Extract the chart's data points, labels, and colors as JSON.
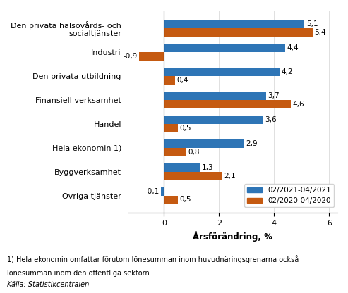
{
  "categories": [
    "Den privata hälsovårds- och\nsocialtjänster",
    "Industri",
    "Den privata utbildning",
    "Finansiell verksamhet",
    "Handel",
    "Hela ekonomin 1)",
    "Byggverksamhet",
    "Övriga tjänster"
  ],
  "values_2021": [
    5.1,
    4.4,
    4.2,
    3.7,
    3.6,
    2.9,
    1.3,
    -0.1
  ],
  "values_2020": [
    5.4,
    -0.9,
    0.4,
    4.6,
    0.5,
    0.8,
    2.1,
    0.5
  ],
  "color_2021": "#2E75B6",
  "color_2020": "#C55A11",
  "legend_2021": "02/2021-04/2021",
  "legend_2020": "02/2020-04/2020",
  "xlabel": "Årsförändring, %",
  "xlim": [
    -1.3,
    6.3
  ],
  "xticks": [
    0,
    2,
    4,
    6
  ],
  "xtick_labels": [
    "0",
    "2",
    "4",
    "6"
  ],
  "footnote1": "1) Hela ekonomin omfattar förutom lönesumman inom huvudnäringsgrenarna också",
  "footnote2": "lönesumman inom den offentliga sektorn",
  "footnote3": "Källa: Statistikcentralen",
  "bar_height": 0.35
}
